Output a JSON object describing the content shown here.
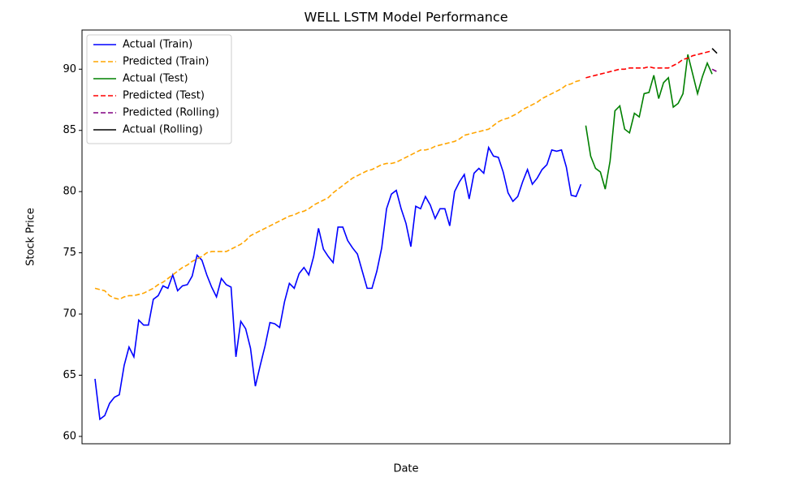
{
  "chart_data": {
    "type": "line",
    "title": "WELL LSTM Model Performance",
    "x_label": "Date",
    "y_label": "Stock Price",
    "categories": [
      null,
      null,
      null,
      null,
      null,
      null,
      null,
      null,
      null,
      null,
      null,
      null,
      null,
      null,
      null,
      null,
      null,
      null,
      null,
      null,
      null,
      null,
      null,
      null,
      null,
      null,
      null,
      null,
      null,
      null,
      null,
      null,
      null,
      null,
      null,
      null,
      null,
      null,
      null,
      null,
      null,
      null,
      null,
      null,
      null,
      null,
      null,
      null,
      null,
      null,
      null,
      null,
      null,
      null,
      null,
      null,
      null,
      null,
      null,
      null,
      null,
      null,
      null,
      null,
      null,
      null,
      null,
      null,
      null,
      null,
      null,
      null,
      null,
      null,
      null,
      null,
      null,
      null,
      null,
      null,
      null,
      null,
      null,
      null,
      null,
      null,
      null,
      null,
      null,
      null,
      null,
      null,
      null,
      null,
      null,
      null,
      null,
      null,
      null,
      null,
      null,
      null,
      null,
      null,
      null,
      null,
      null,
      null,
      null,
      null,
      null,
      null,
      null,
      null,
      null,
      null,
      null,
      null,
      null,
      null,
      null,
      null,
      null,
      null,
      null,
      null,
      null,
      null,
      null
    ],
    "ylim": [
      59.4,
      93.2
    ],
    "yticks": [
      60,
      65,
      70,
      75,
      80,
      85,
      90
    ],
    "grid": false,
    "legend": "upper left",
    "series": [
      {
        "name": "Actual (Train)",
        "color": "#0000ff",
        "dashed": false,
        "values": [
          64.7,
          61.4,
          61.7,
          62.7,
          63.2,
          63.4,
          65.8,
          67.3,
          66.5,
          69.5,
          69.1,
          69.1,
          71.2,
          71.5,
          72.3,
          72.1,
          73.2,
          71.9,
          72.3,
          72.4,
          73.1,
          74.8,
          74.4,
          73.2,
          72.2,
          71.4,
          72.9,
          72.4,
          72.2,
          66.5,
          69.4,
          68.8,
          67.2,
          64.1,
          65.8,
          67.4,
          69.3,
          69.2,
          68.9,
          71,
          72.5,
          72.1,
          73.3,
          73.8,
          73.2,
          74.7,
          77,
          75.3,
          74.7,
          74.2,
          77.1,
          77.1,
          76,
          75.4,
          74.9,
          73.5,
          72.1,
          72.1,
          73.5,
          75.4,
          78.6,
          79.8,
          80.1,
          78.6,
          77.4,
          75.5,
          78.8,
          78.6,
          79.6,
          78.9,
          77.8,
          78.6,
          78.6,
          77.2,
          80,
          80.8,
          81.4,
          79.4,
          81.5,
          81.9,
          81.5,
          83.6,
          82.9,
          82.8,
          81.6,
          79.9,
          79.2,
          79.6,
          80.8,
          81.8,
          80.6,
          81.1,
          81.8,
          82.2,
          83.4,
          83.3,
          83.4,
          82,
          79.7,
          79.6,
          80.6,
          null,
          null,
          null,
          null,
          null,
          null,
          null,
          null,
          null,
          null,
          null,
          null,
          null,
          null,
          null,
          null,
          null,
          null,
          null,
          null,
          null,
          null,
          null,
          null,
          null,
          null,
          null,
          null
        ]
      },
      {
        "name": "Predicted (Train)",
        "color": "#ffa500",
        "dashed": true,
        "values": [
          72.1,
          72.0,
          71.9,
          71.5,
          71.3,
          71.2,
          71.4,
          71.5,
          71.5,
          71.6,
          71.7,
          71.9,
          72.1,
          72.4,
          72.6,
          72.9,
          73.2,
          73.5,
          73.8,
          74.0,
          74.3,
          74.5,
          74.7,
          75.0,
          75.1,
          75.1,
          75.1,
          75.1,
          75.3,
          75.5,
          75.7,
          76.0,
          76.4,
          76.6,
          76.8,
          77.0,
          77.2,
          77.4,
          77.6,
          77.8,
          78.0,
          78.1,
          78.3,
          78.4,
          78.6,
          78.9,
          79.1,
          79.3,
          79.5,
          79.9,
          80.2,
          80.5,
          80.8,
          81.1,
          81.3,
          81.5,
          81.7,
          81.8,
          82.0,
          82.2,
          82.3,
          82.3,
          82.4,
          82.6,
          82.8,
          83.0,
          83.2,
          83.4,
          83.4,
          83.5,
          83.7,
          83.8,
          83.9,
          84.0,
          84.1,
          84.3,
          84.6,
          84.7,
          84.8,
          84.9,
          85.0,
          85.1,
          85.4,
          85.7,
          85.9,
          86.0,
          86.2,
          86.4,
          86.7,
          86.9,
          87.1,
          87.3,
          87.6,
          87.8,
          88.0,
          88.2,
          88.4,
          88.7,
          88.8,
          89.0,
          89.1,
          null,
          null,
          null,
          null,
          null,
          null,
          null,
          null,
          null,
          null,
          null,
          null,
          null,
          null,
          null,
          null,
          null,
          null,
          null,
          null,
          null,
          null,
          null,
          null,
          null,
          null,
          null,
          null
        ]
      },
      {
        "name": "Actual (Test)",
        "color": "#008000",
        "dashed": false,
        "values": [
          null,
          null,
          null,
          null,
          null,
          null,
          null,
          null,
          null,
          null,
          null,
          null,
          null,
          null,
          null,
          null,
          null,
          null,
          null,
          null,
          null,
          null,
          null,
          null,
          null,
          null,
          null,
          null,
          null,
          null,
          null,
          null,
          null,
          null,
          null,
          null,
          null,
          null,
          null,
          null,
          null,
          null,
          null,
          null,
          null,
          null,
          null,
          null,
          null,
          null,
          null,
          null,
          null,
          null,
          null,
          null,
          null,
          null,
          null,
          null,
          null,
          null,
          null,
          null,
          null,
          null,
          null,
          null,
          null,
          null,
          null,
          null,
          null,
          null,
          null,
          null,
          null,
          null,
          null,
          null,
          null,
          null,
          null,
          null,
          null,
          null,
          null,
          null,
          null,
          null,
          null,
          null,
          null,
          null,
          null,
          null,
          null,
          null,
          null,
          null,
          null,
          85.4,
          82.9,
          81.9,
          81.6,
          80.2,
          82.5,
          86.6,
          87.0,
          85.1,
          84.8,
          86.4,
          86.1,
          88.0,
          88.1,
          89.5,
          87.6,
          88.9,
          89.3,
          86.9,
          87.2,
          88.0,
          91.2,
          89.6,
          88.0,
          89.4,
          90.5,
          89.6,
          null
        ]
      },
      {
        "name": "Predicted (Test)",
        "color": "#ff0000",
        "dashed": true,
        "values": [
          null,
          null,
          null,
          null,
          null,
          null,
          null,
          null,
          null,
          null,
          null,
          null,
          null,
          null,
          null,
          null,
          null,
          null,
          null,
          null,
          null,
          null,
          null,
          null,
          null,
          null,
          null,
          null,
          null,
          null,
          null,
          null,
          null,
          null,
          null,
          null,
          null,
          null,
          null,
          null,
          null,
          null,
          null,
          null,
          null,
          null,
          null,
          null,
          null,
          null,
          null,
          null,
          null,
          null,
          null,
          null,
          null,
          null,
          null,
          null,
          null,
          null,
          null,
          null,
          null,
          null,
          null,
          null,
          null,
          null,
          null,
          null,
          null,
          null,
          null,
          null,
          null,
          null,
          null,
          null,
          null,
          null,
          null,
          null,
          null,
          null,
          null,
          null,
          null,
          null,
          null,
          null,
          null,
          null,
          null,
          null,
          null,
          null,
          null,
          null,
          null,
          89.3,
          89.4,
          89.5,
          89.6,
          89.7,
          89.8,
          89.9,
          90.0,
          90.0,
          90.1,
          90.1,
          90.1,
          90.1,
          90.2,
          90.1,
          90.1,
          90.1,
          90.1,
          90.3,
          90.5,
          90.8,
          90.9,
          91.1,
          91.2,
          91.3,
          91.4,
          91.5,
          null
        ]
      },
      {
        "name": "Predicted (Rolling)",
        "color": "#800080",
        "dashed": true,
        "values": [
          null,
          null,
          null,
          null,
          null,
          null,
          null,
          null,
          null,
          null,
          null,
          null,
          null,
          null,
          null,
          null,
          null,
          null,
          null,
          null,
          null,
          null,
          null,
          null,
          null,
          null,
          null,
          null,
          null,
          null,
          null,
          null,
          null,
          null,
          null,
          null,
          null,
          null,
          null,
          null,
          null,
          null,
          null,
          null,
          null,
          null,
          null,
          null,
          null,
          null,
          null,
          null,
          null,
          null,
          null,
          null,
          null,
          null,
          null,
          null,
          null,
          null,
          null,
          null,
          null,
          null,
          null,
          null,
          null,
          null,
          null,
          null,
          null,
          null,
          null,
          null,
          null,
          null,
          null,
          null,
          null,
          null,
          null,
          null,
          null,
          null,
          null,
          null,
          null,
          null,
          null,
          null,
          null,
          null,
          null,
          null,
          null,
          null,
          null,
          null,
          null,
          null,
          null,
          null,
          null,
          null,
          null,
          null,
          null,
          null,
          null,
          null,
          null,
          null,
          null,
          null,
          null,
          null,
          null,
          null,
          null,
          null,
          null,
          null,
          null,
          null,
          null,
          90.0,
          89.8
        ]
      },
      {
        "name": "Actual (Rolling)",
        "color": "#000000",
        "dashed": false,
        "values": [
          null,
          null,
          null,
          null,
          null,
          null,
          null,
          null,
          null,
          null,
          null,
          null,
          null,
          null,
          null,
          null,
          null,
          null,
          null,
          null,
          null,
          null,
          null,
          null,
          null,
          null,
          null,
          null,
          null,
          null,
          null,
          null,
          null,
          null,
          null,
          null,
          null,
          null,
          null,
          null,
          null,
          null,
          null,
          null,
          null,
          null,
          null,
          null,
          null,
          null,
          null,
          null,
          null,
          null,
          null,
          null,
          null,
          null,
          null,
          null,
          null,
          null,
          null,
          null,
          null,
          null,
          null,
          null,
          null,
          null,
          null,
          null,
          null,
          null,
          null,
          null,
          null,
          null,
          null,
          null,
          null,
          null,
          null,
          null,
          null,
          null,
          null,
          null,
          null,
          null,
          null,
          null,
          null,
          null,
          null,
          null,
          null,
          null,
          null,
          null,
          null,
          null,
          null,
          null,
          null,
          null,
          null,
          null,
          null,
          null,
          null,
          null,
          null,
          null,
          null,
          null,
          null,
          null,
          null,
          null,
          null,
          null,
          null,
          null,
          null,
          null,
          null,
          91.7,
          91.3
        ]
      }
    ]
  }
}
